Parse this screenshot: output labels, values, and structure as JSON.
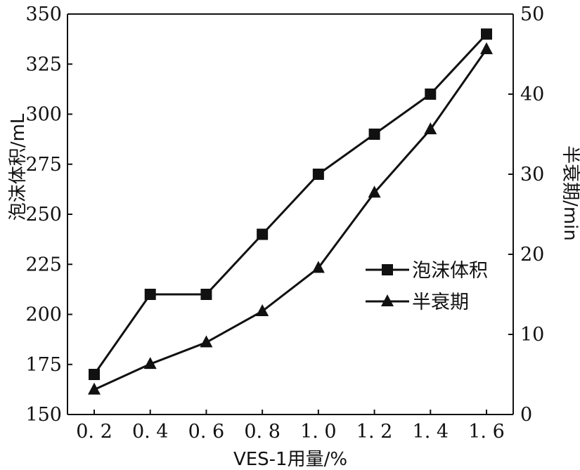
{
  "chart_data": {
    "type": "line",
    "x": [
      0.2,
      0.4,
      0.6,
      0.8,
      1.0,
      1.2,
      1.4,
      1.6
    ],
    "x_tick_labels": [
      "0. 2",
      "0. 4",
      "0. 6",
      "0. 8",
      "1. 0",
      "1. 2",
      "1. 4",
      "1. 6"
    ],
    "xlabel": "VES-1用量/%",
    "ylabel_left": "泡沫体积/mL",
    "ylabel_right": "半衰期/min",
    "ylim_left": [
      150,
      350
    ],
    "ylim_right": [
      0,
      50
    ],
    "y_left_ticks": [
      150,
      175,
      200,
      225,
      250,
      275,
      300,
      325,
      350
    ],
    "y_right_ticks": [
      0,
      10,
      20,
      30,
      40,
      50
    ],
    "series": [
      {
        "name": "泡沫体积",
        "axis": "left",
        "marker": "square",
        "values": [
          170,
          210,
          210,
          240,
          270,
          290,
          310,
          340
        ]
      },
      {
        "name": "半衰期",
        "axis": "right",
        "marker": "triangle",
        "values": [
          3.1,
          6.3,
          9.0,
          12.9,
          18.3,
          27.7,
          35.6,
          45.6
        ]
      }
    ],
    "legend_position": "right",
    "grid": false
  },
  "colors": {
    "line": "#111111",
    "background": "#ffffff"
  }
}
